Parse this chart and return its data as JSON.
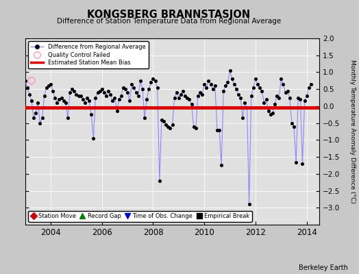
{
  "title": "KONGSBERG BRANNSTASJON",
  "subtitle": "Difference of Station Temperature Data from Regional Average",
  "ylabel": "Monthly Temperature Anomaly Difference (°C)",
  "xlabel_watermark": "Berkeley Earth",
  "ylim": [
    -3.5,
    2.0
  ],
  "yticks": [
    -3.0,
    -2.5,
    -2.0,
    -1.5,
    -1.0,
    -0.5,
    0.0,
    0.5,
    1.0,
    1.5,
    2.0
  ],
  "xlim": [
    2003.0,
    2014.5
  ],
  "xticks": [
    2004,
    2006,
    2008,
    2010,
    2012,
    2014
  ],
  "mean_bias": -0.05,
  "qc_fail_x": 2003.25,
  "qc_fail_y": 0.75,
  "line_color": "#8888ff",
  "dot_color": "#000000",
  "bias_color": "#dd0000",
  "bg_color": "#e0e0e0",
  "fig_color": "#c8c8c8",
  "data_x": [
    2003.0,
    2003.083,
    2003.167,
    2003.25,
    2003.333,
    2003.417,
    2003.5,
    2003.583,
    2003.667,
    2003.75,
    2003.833,
    2003.917,
    2004.0,
    2004.083,
    2004.167,
    2004.25,
    2004.333,
    2004.417,
    2004.5,
    2004.583,
    2004.667,
    2004.75,
    2004.833,
    2004.917,
    2005.0,
    2005.083,
    2005.167,
    2005.25,
    2005.333,
    2005.417,
    2005.5,
    2005.583,
    2005.667,
    2005.75,
    2005.833,
    2005.917,
    2006.0,
    2006.083,
    2006.167,
    2006.25,
    2006.333,
    2006.417,
    2006.5,
    2006.583,
    2006.667,
    2006.75,
    2006.833,
    2006.917,
    2007.0,
    2007.083,
    2007.167,
    2007.25,
    2007.333,
    2007.417,
    2007.5,
    2007.583,
    2007.667,
    2007.75,
    2007.833,
    2007.917,
    2008.0,
    2008.083,
    2008.167,
    2008.25,
    2008.333,
    2008.417,
    2008.5,
    2008.583,
    2008.667,
    2008.75,
    2008.833,
    2008.917,
    2009.0,
    2009.083,
    2009.167,
    2009.25,
    2009.333,
    2009.417,
    2009.5,
    2009.583,
    2009.667,
    2009.75,
    2009.833,
    2009.917,
    2010.0,
    2010.083,
    2010.167,
    2010.25,
    2010.333,
    2010.417,
    2010.5,
    2010.583,
    2010.667,
    2010.75,
    2010.833,
    2010.917,
    2011.0,
    2011.083,
    2011.167,
    2011.25,
    2011.333,
    2011.417,
    2011.5,
    2011.583,
    2011.667,
    2011.75,
    2011.833,
    2011.917,
    2012.0,
    2012.083,
    2012.167,
    2012.25,
    2012.333,
    2012.417,
    2012.5,
    2012.583,
    2012.667,
    2012.75,
    2012.833,
    2012.917,
    2013.0,
    2013.083,
    2013.167,
    2013.25,
    2013.333,
    2013.417,
    2013.5,
    2013.583,
    2013.667,
    2013.75,
    2013.833,
    2013.917,
    2014.0,
    2014.083,
    2014.167
  ],
  "data_y": [
    0.75,
    0.55,
    0.35,
    0.15,
    -0.35,
    -0.2,
    0.1,
    -0.5,
    -0.35,
    0.3,
    0.55,
    0.6,
    0.65,
    0.45,
    0.25,
    0.1,
    0.2,
    0.25,
    0.15,
    0.1,
    -0.35,
    0.4,
    0.5,
    0.45,
    0.35,
    0.3,
    0.3,
    0.2,
    0.1,
    0.25,
    0.15,
    -0.25,
    -0.95,
    0.25,
    0.4,
    0.45,
    0.5,
    0.4,
    0.3,
    0.45,
    0.35,
    0.15,
    0.25,
    -0.15,
    0.2,
    0.3,
    0.55,
    0.5,
    0.4,
    0.15,
    0.65,
    0.55,
    0.4,
    0.3,
    0.75,
    0.5,
    -0.35,
    0.2,
    0.5,
    0.7,
    0.8,
    0.75,
    0.55,
    -2.2,
    -0.4,
    -0.45,
    -0.55,
    -0.6,
    -0.65,
    -0.55,
    0.25,
    0.4,
    0.25,
    0.35,
    0.45,
    0.3,
    0.25,
    0.2,
    0.05,
    -0.6,
    -0.65,
    0.3,
    0.4,
    0.35,
    0.65,
    0.55,
    0.75,
    0.65,
    0.5,
    0.6,
    -0.7,
    -0.7,
    -1.75,
    0.45,
    0.6,
    0.7,
    1.05,
    0.8,
    0.65,
    0.5,
    0.35,
    0.25,
    -0.35,
    0.1,
    -0.05,
    -2.9,
    0.3,
    0.55,
    0.8,
    0.65,
    0.55,
    0.45,
    0.1,
    0.2,
    -0.15,
    -0.25,
    -0.2,
    0.05,
    0.3,
    0.25,
    0.8,
    0.65,
    0.4,
    0.45,
    0.25,
    -0.5,
    -0.6,
    -1.65,
    0.25,
    0.2,
    -1.7,
    0.15,
    0.3,
    0.55,
    0.65
  ]
}
